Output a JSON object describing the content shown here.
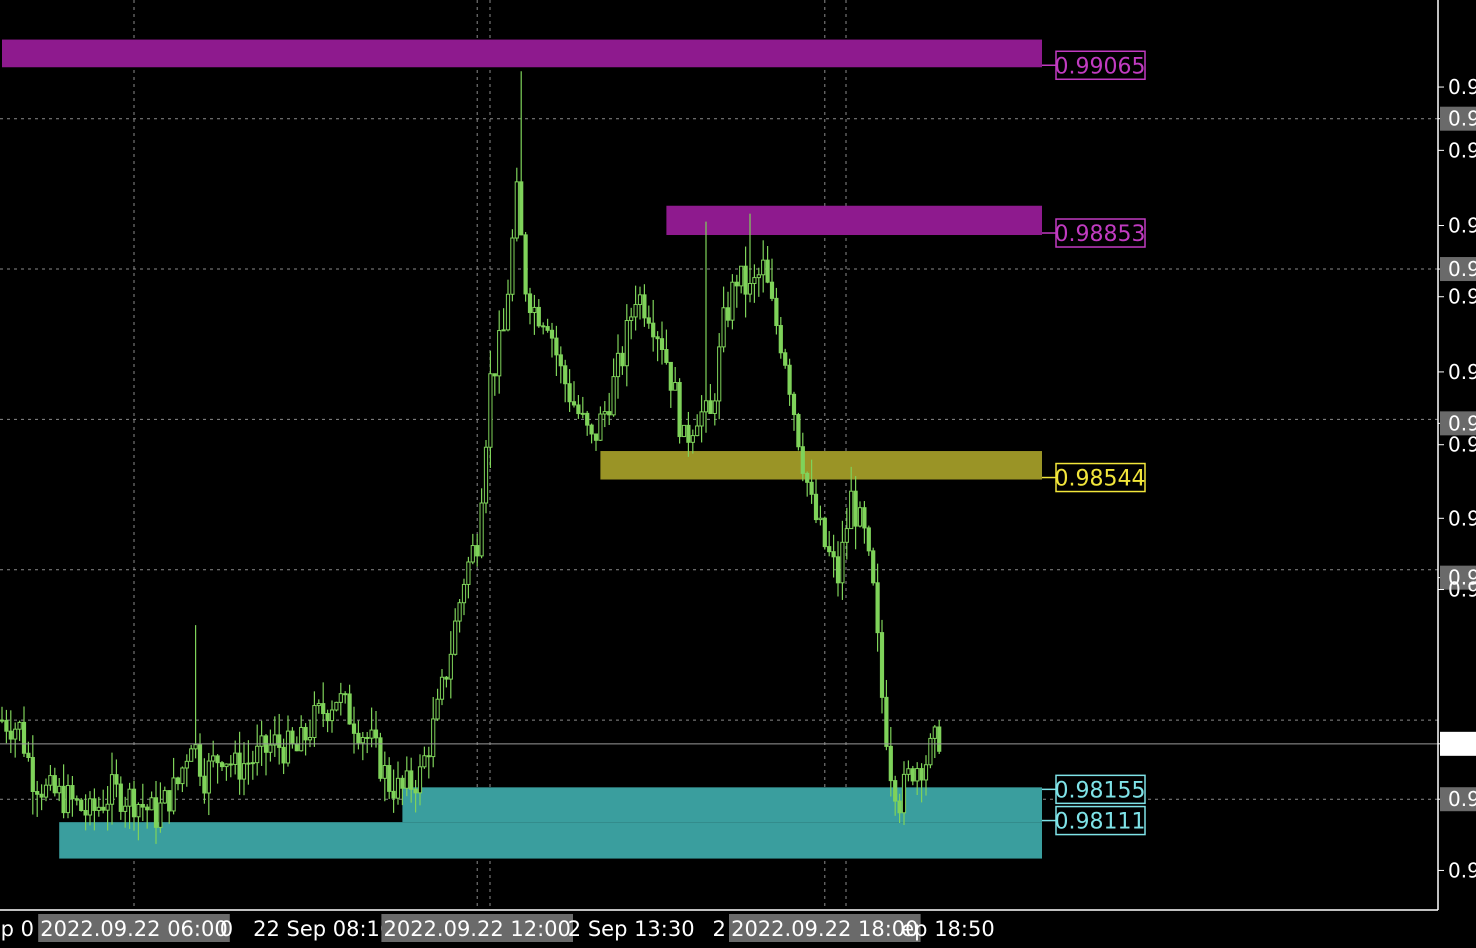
{
  "chart_data": {
    "type": "candlestick",
    "title": "",
    "xlabel": "",
    "ylabel": "",
    "grid": true,
    "colors": {
      "background": "#000000",
      "candle": "#7fd35a",
      "grid": "#8a8a8a",
      "supply": "#8e1a8e",
      "supply_label": "#c13bc1",
      "mid_zone": "#9a9426",
      "mid_label": "#f2e63b",
      "demand": "#3a9e9e",
      "demand_label": "#7fe3e8"
    },
    "ylim": [
      0.98,
      0.9915
    ],
    "zones": [
      {
        "name": "supply-zone-upper",
        "label": "0.99065",
        "top": 0.991,
        "bottom": 0.99065,
        "color": "supply",
        "label_color": "supply_label",
        "start": 0,
        "end": 230
      },
      {
        "name": "supply-zone-middle",
        "label": "0.98853",
        "top": 0.9889,
        "bottom": 0.98853,
        "color": "supply",
        "label_color": "supply_label",
        "start": 151,
        "end": 230
      },
      {
        "name": "mid-zone",
        "label": "0.98544",
        "top": 0.9858,
        "bottom": 0.98544,
        "color": "mid_zone",
        "label_color": "mid_label",
        "start": 136,
        "end": 230
      },
      {
        "name": "demand-zone-upper",
        "label": "0.98155",
        "top": 0.98155,
        "bottom": 0.98111,
        "color": "demand",
        "label_color": "demand_label",
        "start": 91,
        "end": 230
      },
      {
        "name": "demand-zone-lower",
        "label": "0.98111",
        "top": 0.98111,
        "bottom": 0.98065,
        "color": "demand",
        "label_color": "demand_label",
        "start": 13,
        "end": 230
      }
    ],
    "price_axis_labels": [
      {
        "text": "0.9",
        "price": 0.9904
      },
      {
        "text": "0.9",
        "price": 0.99,
        "boxed": true
      },
      {
        "text": "0.9",
        "price": 0.9896
      },
      {
        "text": "0.9",
        "price": 0.98865
      },
      {
        "text": "0.9",
        "price": 0.9881,
        "boxed": true
      },
      {
        "text": "0.9",
        "price": 0.98775
      },
      {
        "text": "0.9",
        "price": 0.9868
      },
      {
        "text": "0.9",
        "price": 0.98615,
        "boxed": true
      },
      {
        "text": "0.9",
        "price": 0.98588
      },
      {
        "text": "0.9",
        "price": 0.98495
      },
      {
        "text": "0.9",
        "price": 0.9842,
        "boxed": true
      },
      {
        "text": "0.9",
        "price": 0.98405
      },
      {
        "text": "0.9",
        "price": 0.9821,
        "current": true
      },
      {
        "text": "0.9",
        "price": 0.9814,
        "boxed": true
      },
      {
        "text": "0.9",
        "price": 0.9805
      }
    ],
    "current_price": 0.9821,
    "time_labels": [
      {
        "text": "ep 0",
        "index": 2
      },
      {
        "text": "2022.09.22 06:00",
        "index": 30,
        "boxed": true
      },
      {
        "text": "0",
        "index": 51
      },
      {
        "text": "22 Sep 08:10",
        "index": 73
      },
      {
        "text": "2022.09.22 12:00",
        "index": 108,
        "boxed": true
      },
      {
        "text": "2 Sep 13:30",
        "index": 143
      },
      {
        "text": "2",
        "index": 163
      },
      {
        "text": "2022.09.22 18:00",
        "index": 187,
        "boxed": true
      },
      {
        "text": "ep 18:50",
        "index": 215
      }
    ],
    "vertical_grid_indices": [
      30,
      108,
      187
    ],
    "horizontal_grid_prices": [
      0.99,
      0.9881,
      0.9862,
      0.9843,
      0.9824,
      0.9814
    ],
    "close_path": [
      [
        0,
        0.9824
      ],
      [
        4,
        0.9823
      ],
      [
        7,
        0.9817
      ],
      [
        10,
        0.9815
      ],
      [
        15,
        0.9814
      ],
      [
        20,
        0.9812
      ],
      [
        25,
        0.9815
      ],
      [
        30,
        0.9814
      ],
      [
        35,
        0.9812
      ],
      [
        40,
        0.9816
      ],
      [
        43,
        0.9822
      ],
      [
        46,
        0.9817
      ],
      [
        50,
        0.982
      ],
      [
        53,
        0.9818
      ],
      [
        57,
        0.9819
      ],
      [
        62,
        0.9821
      ],
      [
        67,
        0.982
      ],
      [
        71,
        0.9824
      ],
      [
        76,
        0.9827
      ],
      [
        80,
        0.9824
      ],
      [
        84,
        0.9821
      ],
      [
        88,
        0.9816
      ],
      [
        91,
        0.9815
      ],
      [
        95,
        0.9817
      ],
      [
        99,
        0.9825
      ],
      [
        102,
        0.9833
      ],
      [
        105,
        0.9842
      ],
      [
        108,
        0.9847
      ],
      [
        111,
        0.9867
      ],
      [
        114,
        0.9873
      ],
      [
        117,
        0.989
      ],
      [
        119,
        0.9879
      ],
      [
        121,
        0.9876
      ],
      [
        124,
        0.9875
      ],
      [
        127,
        0.9868
      ],
      [
        130,
        0.9864
      ],
      [
        134,
        0.9859
      ],
      [
        137,
        0.9863
      ],
      [
        141,
        0.987
      ],
      [
        144,
        0.9878
      ],
      [
        147,
        0.9876
      ],
      [
        150,
        0.9872
      ],
      [
        153,
        0.9865
      ],
      [
        155,
        0.9859
      ],
      [
        158,
        0.9863
      ],
      [
        161,
        0.9862
      ],
      [
        164,
        0.9874
      ],
      [
        167,
        0.988
      ],
      [
        170,
        0.9878
      ],
      [
        173,
        0.9881
      ],
      [
        175,
        0.9876
      ],
      [
        178,
        0.987
      ],
      [
        181,
        0.986
      ],
      [
        184,
        0.9851
      ],
      [
        187,
        0.9846
      ],
      [
        190,
        0.9842
      ],
      [
        193,
        0.9852
      ],
      [
        196,
        0.9847
      ],
      [
        198,
        0.984
      ],
      [
        200,
        0.9827
      ],
      [
        202,
        0.9818
      ],
      [
        204,
        0.9814
      ],
      [
        207,
        0.9818
      ],
      [
        210,
        0.9819
      ],
      [
        213,
        0.9822
      ]
    ],
    "wick_spikes": [
      {
        "index": 44,
        "high": 0.9836
      },
      {
        "index": 118,
        "high": 0.9906
      },
      {
        "index": 160,
        "high": 0.9887
      },
      {
        "index": 170,
        "high": 0.9888
      },
      {
        "index": 193,
        "high": 0.9856
      },
      {
        "index": 213,
        "high": 0.9824
      }
    ]
  }
}
